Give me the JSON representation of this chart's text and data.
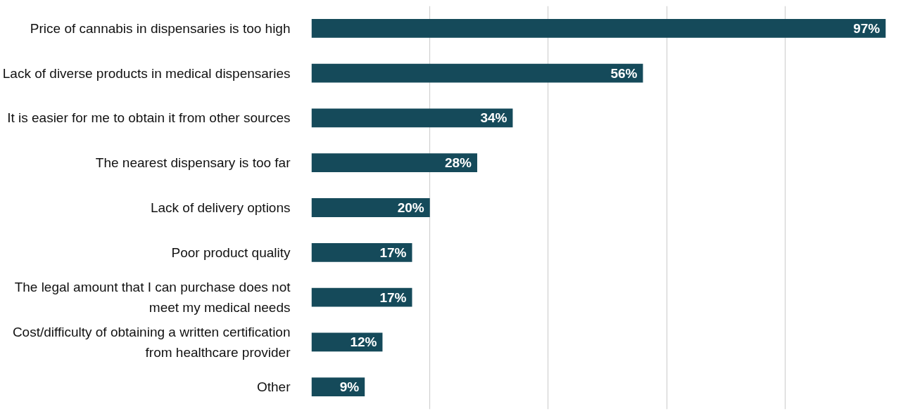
{
  "chart_data": {
    "type": "bar",
    "orientation": "horizontal",
    "categories": [
      "Price of cannabis in dispensaries is too high",
      "Lack of diverse products in medical dispensaries",
      "It is easier for me to obtain it from other sources",
      "The nearest dispensary is too far",
      "Lack of delivery options",
      "Poor product quality",
      "The legal amount that I can purchase does not\nmeet my medical needs",
      "Cost/difficulty of obtaining a written certification\nfrom healthcare provider",
      "Other"
    ],
    "values": [
      97,
      56,
      34,
      28,
      20,
      17,
      17,
      12,
      9
    ],
    "value_labels": [
      "97%",
      "56%",
      "34%",
      "28%",
      "20%",
      "17%",
      "17%",
      "12%",
      "9%"
    ],
    "color": "#154a5a",
    "grid": "x",
    "tick_labels": "y"
  }
}
